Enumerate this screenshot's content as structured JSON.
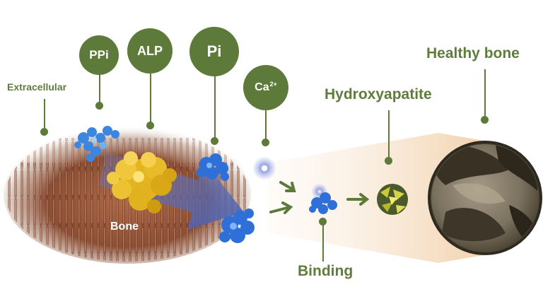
{
  "labels": {
    "extracellular": "Extracellular",
    "ppi": "PPi",
    "alp": "ALP",
    "pi": "Pi",
    "calcium": "Ca",
    "calcium_charge": "2+",
    "bone": "Bone",
    "binding": "Binding",
    "hydroxyapatite": "Hydroxyapatite",
    "healthy_bone": "Healthy bone"
  },
  "colors": {
    "accent_green": "#5d7a3a",
    "label_green": "#5e7d3c",
    "bone_yellow": "#e6bd2a",
    "protein_blue": "#2f6fd8",
    "tissue_brown": "#9a5a3e",
    "beam_peach": "#f1d2b0"
  },
  "icons": {
    "bone_surface": "bone-tissue-icon",
    "alp_protein": "alp-protein-icon",
    "pi_protein": "pi-protein-icon",
    "calcium_ion": "calcium-ion-icon",
    "crystal": "hydroxyapatite-crystal-icon",
    "healthy_bone": "healthy-bone-icon"
  }
}
